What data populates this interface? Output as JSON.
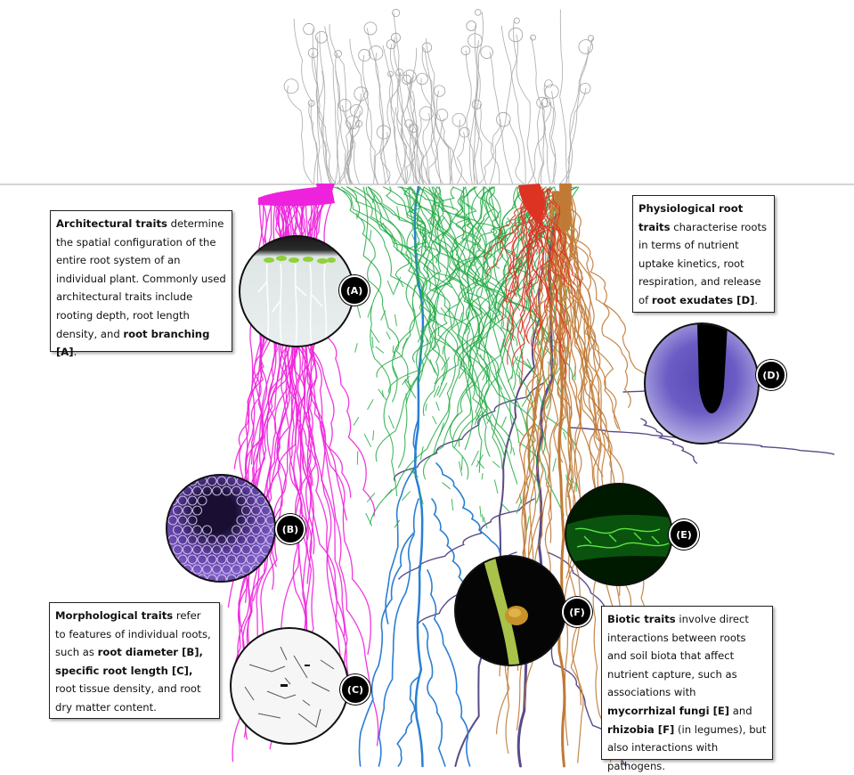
{
  "colors": {
    "architectural_root": "#ee22dd",
    "grass_root": "#22aa44",
    "tap_root_blue": "#2a7fd4",
    "red_root": "#dd3322",
    "brown_root": "#c07a35",
    "purple_root": "#5b4a8a",
    "shoots": "#a0a0a0"
  },
  "badges": {
    "a": "(A)",
    "b": "(B)",
    "c": "(C)",
    "d": "(D)",
    "e": "(E)",
    "f": "(F)"
  },
  "boxes": {
    "architectural": {
      "title": "Architectural traits",
      "body": " determine the spatial configuration of the entire root system of an individual plant. Commonly used architectural traits include rooting depth, root length density, and ",
      "highlight": "root branching [A]",
      "end": "."
    },
    "physiological": {
      "title": "Physiological root traits",
      "body": " characterise roots in terms of nutrient uptake kinetics, root respiration, and release of ",
      "highlight": "root exudates [D]",
      "end": "."
    },
    "morphological": {
      "title": "Morphological traits",
      "part1": " refer to features of individual roots, such as ",
      "highlight1": "root diameter [B], specific root length [C],",
      "part2": " root tissue density, and root dry matter content."
    },
    "biotic": {
      "title": "Biotic traits",
      "part1": " involve direct interactions between roots and soil biota that affect nutrient capture, such as associations with ",
      "highlight1": "mycorrhizal fungi [E]",
      "part2": " and ",
      "highlight2": "rhizobia [F]",
      "part3": " (in legumes), but also interactions with pathogens."
    }
  }
}
